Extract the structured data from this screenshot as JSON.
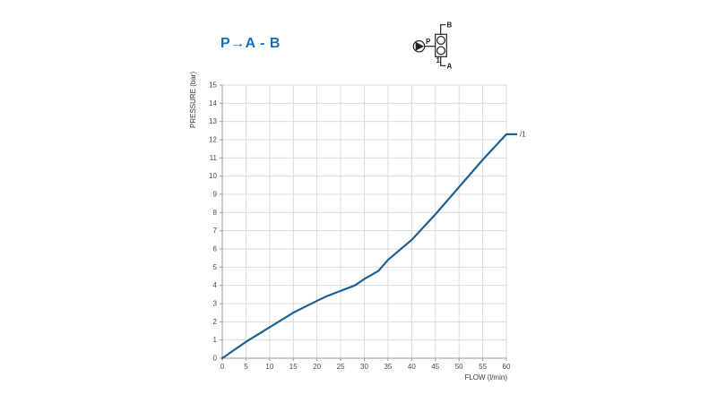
{
  "title": {
    "text": "P→A - B",
    "color": "#1470b4"
  },
  "symbol": {
    "ports": {
      "b": "B",
      "p": "P",
      "a": "A"
    },
    "item": "1",
    "color": "#222222"
  },
  "chart_data": {
    "type": "line",
    "title": "P→A - B",
    "xlabel": "FLOW (l/min)",
    "ylabel": "PRESSURE (bar)",
    "xlim": [
      0,
      60
    ],
    "ylim": [
      0,
      15
    ],
    "xticks": [
      0,
      5,
      10,
      15,
      20,
      25,
      30,
      35,
      40,
      45,
      50,
      55,
      60
    ],
    "yticks": [
      0,
      1,
      2,
      3,
      4,
      5,
      6,
      7,
      8,
      9,
      10,
      11,
      12,
      13,
      14,
      15
    ],
    "grid": true,
    "legend_position": "end-of-line",
    "series": [
      {
        "name": "/1",
        "color": "#1e6094",
        "x": [
          0,
          5,
          10,
          15,
          20,
          22,
          25,
          28,
          30,
          33,
          35,
          40,
          45,
          50,
          55,
          60
        ],
        "y": [
          0,
          0.9,
          1.7,
          2.5,
          3.15,
          3.4,
          3.7,
          4.0,
          4.35,
          4.8,
          5.4,
          6.5,
          7.9,
          9.4,
          10.9,
          12.3
        ]
      }
    ],
    "annotation_label": "/1",
    "grid_color": "#d8dbdd",
    "axis_color": "#9b9b9b",
    "tick_label_color": "#4a4a4a",
    "axis_title_color": "#3a3a3a"
  }
}
